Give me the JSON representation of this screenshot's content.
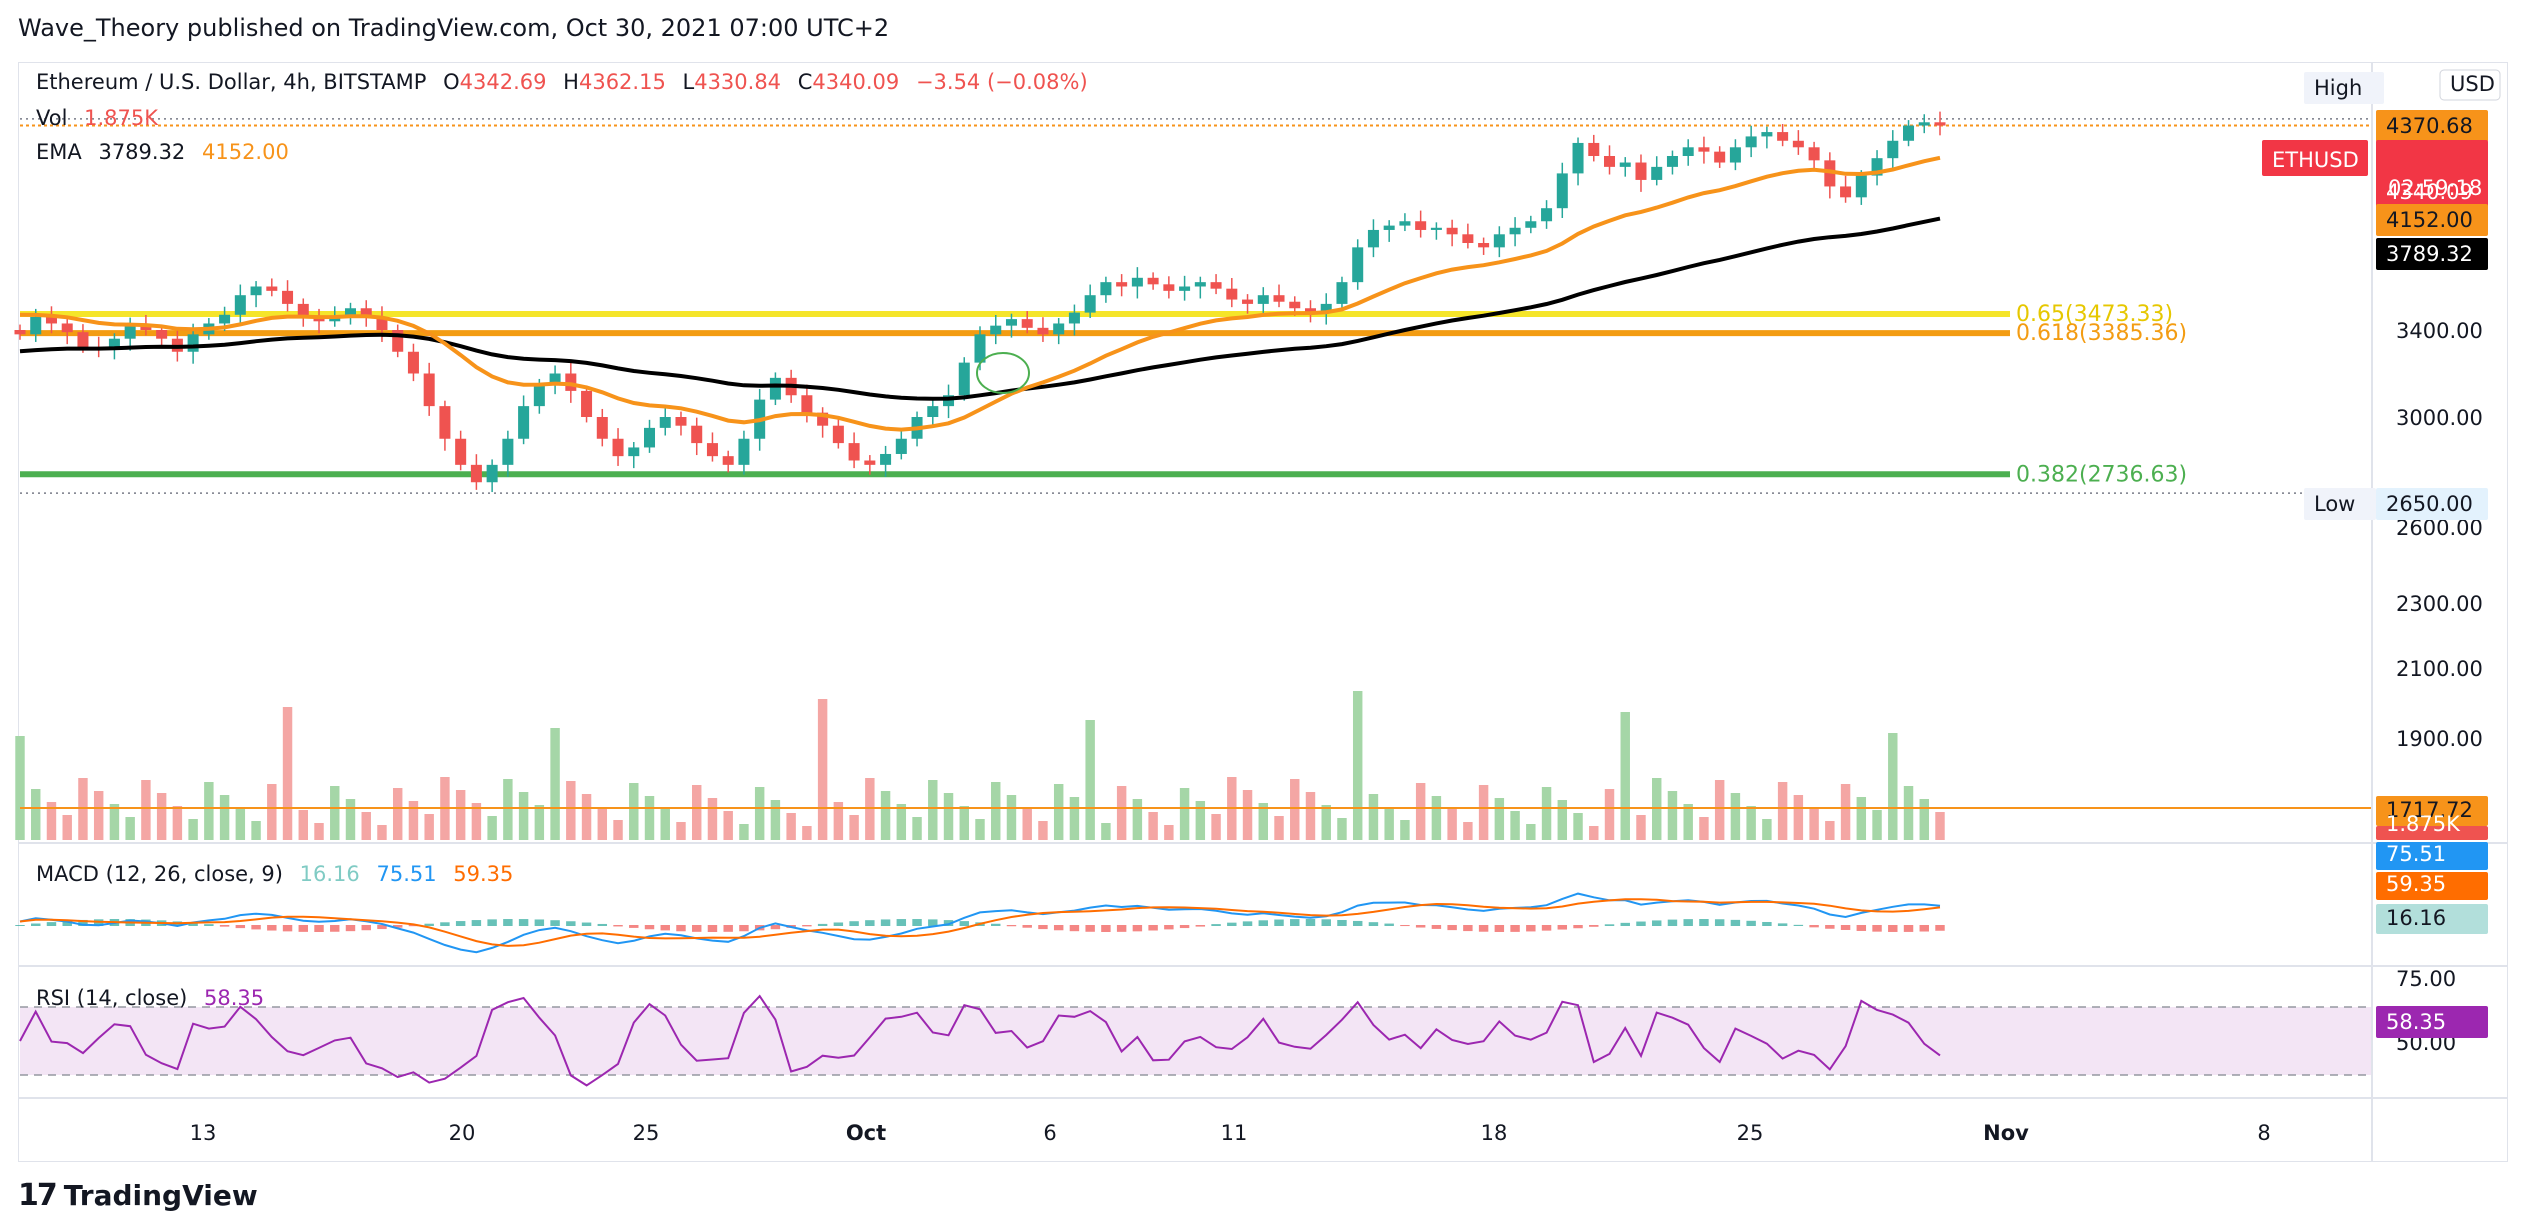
{
  "header": {
    "publish_line": "Wave_Theory published on TradingView.com, Oct 30, 2021 07:00 UTC+2"
  },
  "legend": {
    "symbol": "Ethereum / U.S. Dollar, 4h, BITSTAMP",
    "open_label": "O",
    "open": "4342.69",
    "high_label": "H",
    "high": "4362.15",
    "low_label": "L",
    "low": "4330.84",
    "close_label": "C",
    "close": "4340.09",
    "change": "−3.54 (−0.08%)",
    "vol_label": "Vol",
    "vol": "1.875K",
    "ema_label": "EMA",
    "ema1": "3789.32",
    "ema2": "4152.00"
  },
  "macd_legend": {
    "label": "MACD (12, 26, close, 9)",
    "hist": "16.16",
    "macd": "75.51",
    "signal": "59.35"
  },
  "rsi_legend": {
    "label": "RSI (14, close)",
    "value": "58.35"
  },
  "footer": {
    "brand": "TradingView",
    "logo": "17"
  },
  "colors": {
    "up": "#26a69a",
    "down": "#ef5350",
    "ema_fast": "#f7931a",
    "ema_slow": "#000000",
    "fib_065": "#f5e52a",
    "fib_0618": "#f39c12",
    "fib_0382": "#4caf50",
    "macd": "#2196f3",
    "signal": "#ff6d00",
    "rsi": "#9c27b0",
    "rsi_band": "#f3e5f5"
  },
  "chart_data": {
    "type": "candlestick",
    "symbol": "ETHUSD",
    "currency": "USD",
    "price_axis": {
      "ticks": [
        1900,
        2100,
        2300,
        3000,
        3400
      ],
      "tick_labels": [
        "1900.00",
        "2100.00",
        "2300.00",
        "3000.00",
        "3400.00"
      ],
      "partial_tick_labels": [
        "2600.00"
      ]
    },
    "time_axis": {
      "labels": [
        "13",
        "20",
        "25",
        "Oct",
        "6",
        "11",
        "18",
        "25",
        "Nov",
        "8"
      ]
    },
    "badges": {
      "high_label": "High",
      "high_value": "4370.68",
      "low_label": "Low",
      "low_value": "2650.00",
      "symbol_badge": "ETHUSD",
      "last_price": "4340.09",
      "countdown": "02:59:18",
      "ema_fast_value": "4152.00",
      "ema_slow_value": "3789.32",
      "vol_ma_value": "1717.72",
      "vol_value": "1.875K",
      "currency_badge": "USD",
      "rsi_value": "58.35",
      "rsi_upper": "75.00",
      "rsi_lower": "50.00",
      "macd_value": "75.51",
      "signal_value": "59.35",
      "hist_value": "16.16"
    },
    "fib_levels": [
      {
        "ratio": "0.65",
        "price": 3473.33,
        "label": "0.65(3473.33)"
      },
      {
        "ratio": "0.618",
        "price": 3385.36,
        "label": "0.618(3385.36)"
      },
      {
        "ratio": "0.382",
        "price": 2736.63,
        "label": "0.382(2736.63)"
      }
    ],
    "close_series_approx": [
      3380,
      3460,
      3430,
      3390,
      3320,
      3310,
      3360,
      3420,
      3400,
      3360,
      3300,
      3380,
      3430,
      3470,
      3560,
      3600,
      3580,
      3520,
      3460,
      3440,
      3460,
      3500,
      3460,
      3400,
      3300,
      3200,
      3050,
      2900,
      2780,
      2700,
      2780,
      2900,
      3050,
      3150,
      3200,
      3120,
      3000,
      2900,
      2820,
      2860,
      2950,
      3000,
      2960,
      2880,
      2820,
      2780,
      2900,
      3080,
      3180,
      3100,
      3020,
      2960,
      2880,
      2800,
      2780,
      2830,
      2900,
      3000,
      3050,
      3100,
      3250,
      3380,
      3420,
      3450,
      3410,
      3380,
      3430,
      3480,
      3560,
      3620,
      3600,
      3640,
      3610,
      3580,
      3600,
      3620,
      3590,
      3540,
      3520,
      3560,
      3530,
      3500,
      3480,
      3520,
      3620,
      3780,
      3860,
      3880,
      3900,
      3860,
      3870,
      3840,
      3800,
      3780,
      3840,
      3870,
      3900,
      3960,
      4120,
      4260,
      4200,
      4150,
      4170,
      4090,
      4150,
      4200,
      4240,
      4220,
      4170,
      4240,
      4290,
      4310,
      4270,
      4240,
      4180,
      4060,
      4010,
      4110,
      4190,
      4270,
      4340,
      4355,
      4340
    ],
    "ema_fast_final": 4152.0,
    "ema_slow_final": 3789.32,
    "rsi_final": 58.35,
    "macd_final": 75.51,
    "signal_final": 59.35,
    "hist_final": 16.16
  }
}
